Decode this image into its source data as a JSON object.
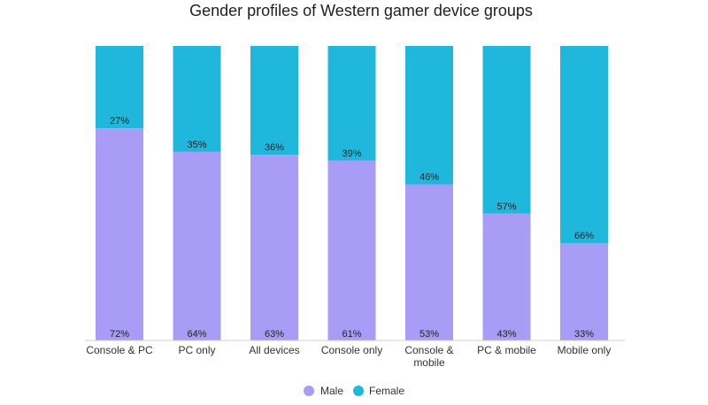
{
  "chart_data": {
    "type": "bar",
    "stacked": true,
    "title": "Gender profiles of Western gamer device groups",
    "categories": [
      "Console & PC",
      "PC only",
      "All devices",
      "Console only",
      "Console & mobile",
      "PC & mobile",
      "Mobile only"
    ],
    "series": [
      {
        "name": "Male",
        "values": [
          72,
          64,
          63,
          61,
          53,
          43,
          33
        ],
        "labels": [
          "72%",
          "64%",
          "63%",
          "61%",
          "53%",
          "43%",
          "33%"
        ]
      },
      {
        "name": "Female",
        "values": [
          27,
          35,
          36,
          39,
          46,
          57,
          66
        ],
        "labels": [
          "27%",
          "35%",
          "36%",
          "39%",
          "46%",
          "57%",
          "66%"
        ]
      }
    ],
    "ylim": [
      0,
      100
    ],
    "grid": false,
    "legend_position": "bottom",
    "colors": {
      "Male": "#a99cf6",
      "Female": "#1fb8dc"
    }
  }
}
